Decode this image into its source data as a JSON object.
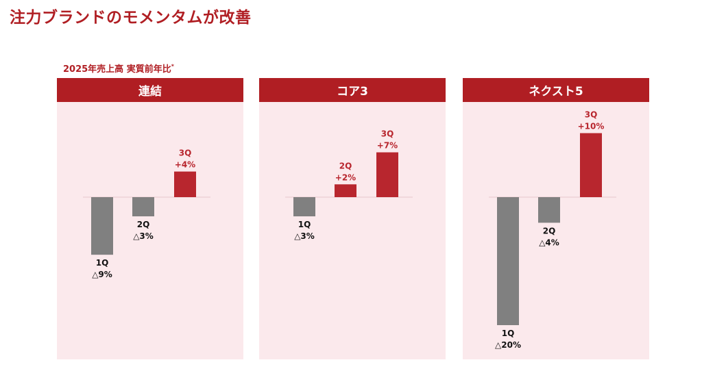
{
  "title": "注力ブランドのモメンタムが改善",
  "subtitle": "2025年売上高 実質前年比",
  "subtitle_mark": "*",
  "colors": {
    "accent": "#b01e23",
    "panel_bg": "#fbe9ec",
    "negative_bar": "#808080",
    "positive_bar": "#b8262e",
    "negative_text": "#111111",
    "positive_text": "#b8262e"
  },
  "chart_data": [
    {
      "type": "bar",
      "title": "連結",
      "categories": [
        "1Q",
        "2Q",
        "3Q"
      ],
      "values": [
        -9,
        -3,
        4
      ],
      "value_labels": [
        "△9%",
        "△3%",
        "+4%"
      ]
    },
    {
      "type": "bar",
      "title": "コア3",
      "categories": [
        "1Q",
        "2Q",
        "3Q"
      ],
      "values": [
        -3,
        2,
        7
      ],
      "value_labels": [
        "△3%",
        "+2%",
        "+7%"
      ]
    },
    {
      "type": "bar",
      "title": "ネクスト5",
      "categories": [
        "1Q",
        "2Q",
        "3Q"
      ],
      "values": [
        -20,
        -4,
        10
      ],
      "value_labels": [
        "△20%",
        "△4%",
        "+10%"
      ]
    }
  ]
}
